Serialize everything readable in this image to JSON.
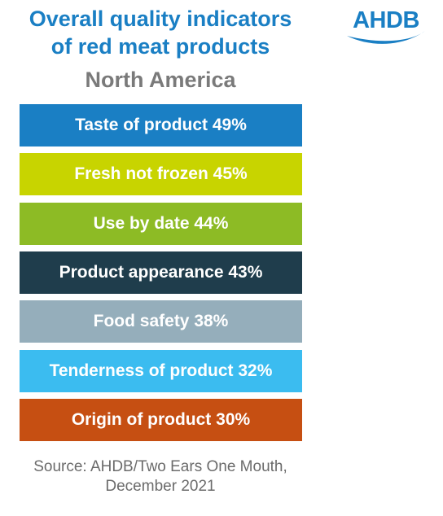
{
  "header": {
    "title_line1": "Overall quality indicators",
    "title_line2": "of red meat products",
    "region": "North America"
  },
  "logo": {
    "text": "AHDB",
    "icon": "swoosh-icon",
    "color": "#1a7fc4"
  },
  "chart_data": {
    "type": "bar",
    "title": "Overall quality indicators of red meat products",
    "subtitle": "North America",
    "categories": [
      "Taste of product",
      "Fresh not frozen",
      "Use by date",
      "Product appearance",
      "Food safety",
      "Tenderness of product",
      "Origin of product"
    ],
    "values": [
      49,
      45,
      44,
      43,
      38,
      32,
      30
    ],
    "labels": [
      "Taste of product 49%",
      "Fresh not frozen 45%",
      "Use by date 44%",
      "Product appearance 43%",
      "Food safety 38%",
      "Tenderness of product 32%",
      "Origin of product 30%"
    ],
    "colors": [
      "#1a7fc4",
      "#c8d400",
      "#8dbb25",
      "#1f3d4c",
      "#95aebb",
      "#3bbcf0",
      "#c64f12"
    ],
    "unit": "%"
  },
  "footer": {
    "source_line1": "Source: AHDB/Two Ears One Mouth,",
    "source_line2": "December 2021"
  }
}
